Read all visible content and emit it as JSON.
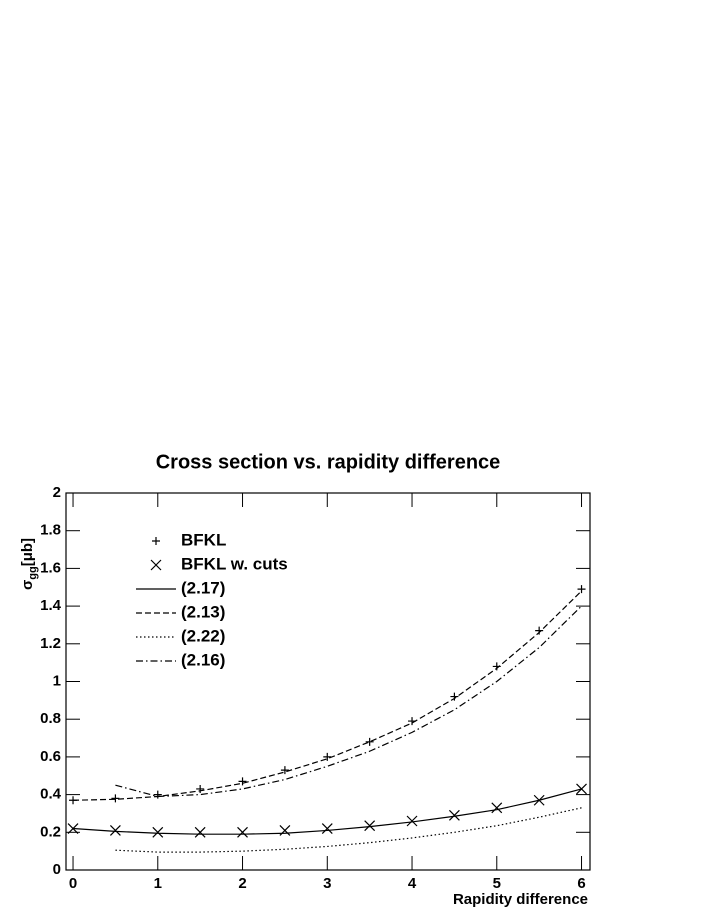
{
  "chart_data": {
    "type": "line",
    "title": "Cross section vs. rapidity difference",
    "x_label": "Rapidity difference",
    "y_label": {
      "symbol": "σ",
      "subscript": "gg",
      "unit": "[μb]"
    },
    "x": [
      0,
      0.5,
      1,
      1.5,
      2,
      2.5,
      3,
      3.5,
      4,
      4.5,
      5,
      5.5,
      6
    ],
    "series": [
      {
        "name": "BFKL",
        "color": "#000000",
        "marker": "plus",
        "values": [
          0.37,
          0.38,
          0.4,
          0.43,
          0.47,
          0.53,
          0.6,
          0.68,
          0.79,
          0.92,
          1.08,
          1.27,
          1.49
        ]
      },
      {
        "name": "BFKL w. cuts",
        "color": "#000000",
        "marker": "cross",
        "values": [
          0.22,
          0.21,
          0.2,
          0.2,
          0.2,
          0.21,
          0.22,
          0.235,
          0.26,
          0.29,
          0.33,
          0.37,
          0.43
        ]
      },
      {
        "name": "(2.17)",
        "color": "#000000",
        "dash": "solid",
        "values": [
          0.22,
          0.205,
          0.195,
          0.19,
          0.19,
          0.195,
          0.21,
          0.23,
          0.255,
          0.285,
          0.32,
          0.37,
          0.43
        ]
      },
      {
        "name": "(2.13)",
        "color": "#000000",
        "dash": "dashed",
        "values": [
          0.37,
          0.375,
          0.39,
          0.42,
          0.46,
          0.52,
          0.59,
          0.68,
          0.78,
          0.91,
          1.07,
          1.26,
          1.48
        ]
      },
      {
        "name": "(2.22)",
        "color": "#000000",
        "dash": "dotted",
        "values": [
          null,
          0.105,
          0.095,
          0.095,
          0.1,
          0.11,
          0.125,
          0.145,
          0.17,
          0.2,
          0.235,
          0.28,
          0.33
        ]
      },
      {
        "name": "(2.16)",
        "color": "#000000",
        "dash": "dashdot",
        "values": [
          null,
          0.45,
          0.39,
          0.4,
          0.43,
          0.48,
          0.55,
          0.63,
          0.73,
          0.85,
          1.0,
          1.18,
          1.4
        ]
      }
    ],
    "xlim": [
      -0.083,
      6.1
    ],
    "ylim": [
      0,
      2
    ],
    "xticks": [
      0,
      1,
      2,
      3,
      4,
      5,
      6
    ],
    "yticks": [
      0,
      0.2,
      0.4,
      0.6,
      0.8,
      1,
      1.2,
      1.4,
      1.6,
      1.8,
      2
    ],
    "legend": "upper left"
  }
}
